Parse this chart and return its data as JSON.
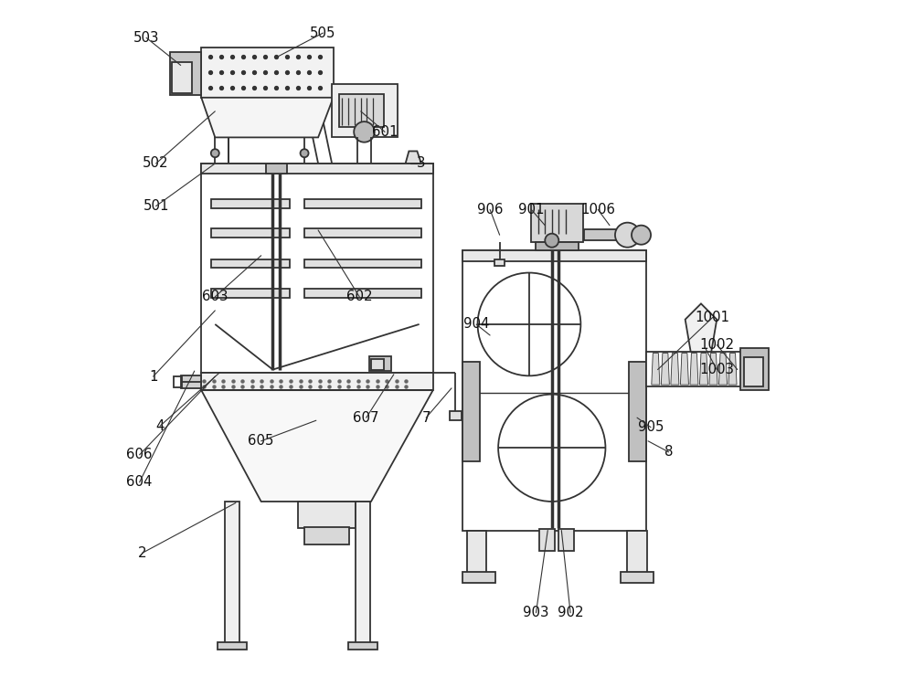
{
  "bg_color": "#ffffff",
  "line_color": "#333333",
  "lw": 1.3,
  "fig_width": 10.0,
  "fig_height": 7.52,
  "label_data": {
    "503": [
      0.048,
      0.945,
      0.098,
      0.905
    ],
    "505": [
      0.305,
      0.952,
      0.24,
      0.918
    ],
    "601": [
      0.395,
      0.808,
      0.36,
      0.838
    ],
    "3": [
      0.447,
      0.762,
      0.432,
      0.762
    ],
    "502": [
      0.062,
      0.762,
      0.148,
      0.838
    ],
    "501": [
      0.062,
      0.7,
      0.148,
      0.762
    ],
    "603": [
      0.148,
      0.568,
      0.215,
      0.628
    ],
    "602": [
      0.358,
      0.568,
      0.298,
      0.665
    ],
    "1": [
      0.058,
      0.452,
      0.148,
      0.548
    ],
    "4": [
      0.068,
      0.38,
      0.155,
      0.458
    ],
    "604": [
      0.038,
      0.298,
      0.118,
      0.46
    ],
    "606": [
      0.038,
      0.338,
      0.148,
      0.452
    ],
    "605": [
      0.215,
      0.358,
      0.295,
      0.388
    ],
    "607": [
      0.368,
      0.392,
      0.408,
      0.455
    ],
    "2": [
      0.042,
      0.195,
      0.178,
      0.268
    ],
    "7": [
      0.455,
      0.392,
      0.492,
      0.435
    ],
    "906": [
      0.548,
      0.695,
      0.562,
      0.658
    ],
    "901": [
      0.608,
      0.695,
      0.628,
      0.672
    ],
    "1006": [
      0.705,
      0.695,
      0.722,
      0.672
    ],
    "904": [
      0.528,
      0.528,
      0.548,
      0.512
    ],
    "905": [
      0.782,
      0.378,
      0.762,
      0.392
    ],
    "1003": [
      0.878,
      0.462,
      0.862,
      0.492
    ],
    "1002": [
      0.878,
      0.498,
      0.908,
      0.462
    ],
    "1001": [
      0.872,
      0.538,
      0.792,
      0.462
    ],
    "8": [
      0.808,
      0.342,
      0.778,
      0.358
    ],
    "903": [
      0.615,
      0.108,
      0.632,
      0.228
    ],
    "902": [
      0.665,
      0.108,
      0.652,
      0.228
    ]
  }
}
